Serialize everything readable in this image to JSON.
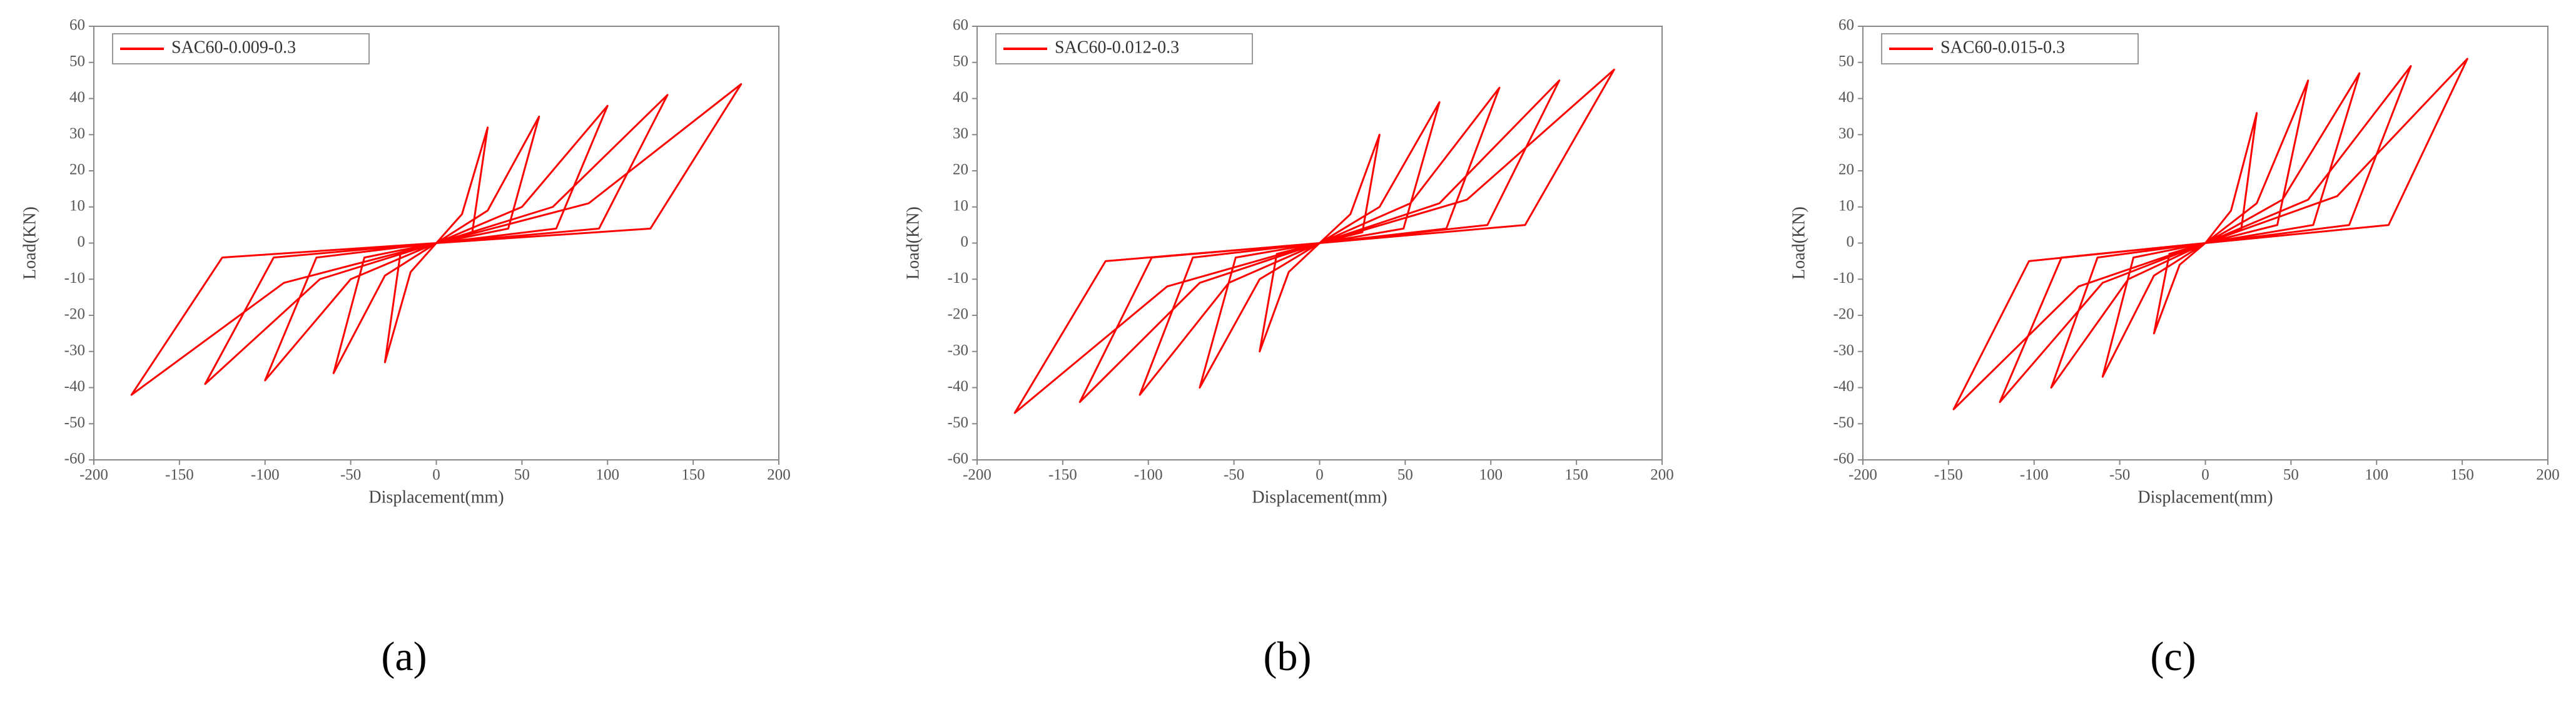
{
  "chart_data": [
    {
      "type": "line",
      "caption": "(a)",
      "xlabel": "Displacement(mm)",
      "ylabel": "Load(KN)",
      "xlim": [
        -200,
        200
      ],
      "xticks": [
        -200,
        -150,
        -100,
        -50,
        0,
        50,
        100,
        150,
        200
      ],
      "ylim": [
        -60,
        60
      ],
      "yticks": [
        -60,
        -50,
        -40,
        -30,
        -20,
        -10,
        0,
        10,
        20,
        30,
        40,
        50,
        60
      ],
      "series": [
        {
          "name": "SAC60-0.009-0.3",
          "color": "#ff0000",
          "x": [
            0,
            15,
            30,
            21,
            0,
            -15,
            -30,
            -21,
            0,
            30,
            60,
            42,
            0,
            -30,
            -60,
            -42,
            0,
            50,
            100,
            70,
            0,
            -50,
            -100,
            -70,
            0,
            68,
            135,
            95,
            0,
            -68,
            -135,
            -95,
            0,
            89,
            178,
            125,
            0,
            -89,
            -178,
            -125,
            0
          ],
          "values": [
            0,
            8,
            32,
            3,
            0,
            -8,
            -33,
            -3,
            0,
            9,
            35,
            4,
            0,
            -9,
            -36,
            -4,
            0,
            10,
            38,
            4,
            0,
            -10,
            -38,
            -4,
            0,
            10,
            41,
            4,
            0,
            -10,
            -39,
            -4,
            0,
            11,
            44,
            4,
            0,
            -11,
            -42,
            -4,
            0
          ]
        }
      ]
    },
    {
      "type": "line",
      "caption": "(b)",
      "xlabel": "Displacement(mm)",
      "ylabel": "Load(KN)",
      "xlim": [
        -200,
        200
      ],
      "xticks": [
        -200,
        -150,
        -100,
        -50,
        0,
        50,
        100,
        150,
        200
      ],
      "ylim": [
        -60,
        60
      ],
      "yticks": [
        -60,
        -50,
        -40,
        -30,
        -20,
        -10,
        0,
        10,
        20,
        30,
        40,
        50,
        60
      ],
      "series": [
        {
          "name": "SAC60-0.012-0.3",
          "color": "#ff0000",
          "x": [
            0,
            18,
            35,
            25,
            0,
            -18,
            -35,
            -25,
            0,
            35,
            70,
            49,
            0,
            -35,
            -70,
            -49,
            0,
            53,
            105,
            74,
            0,
            -53,
            -105,
            -74,
            0,
            70,
            140,
            98,
            0,
            -70,
            -140,
            -98,
            0,
            86,
            172,
            120,
            0,
            -89,
            -178,
            -125,
            0
          ],
          "values": [
            0,
            8,
            30,
            3,
            0,
            -8,
            -30,
            -3,
            0,
            10,
            39,
            4,
            0,
            -10,
            -40,
            -4,
            0,
            11,
            43,
            4,
            0,
            -11,
            -42,
            -4,
            0,
            11,
            45,
            5,
            0,
            -11,
            -44,
            -4,
            0,
            12,
            48,
            5,
            0,
            -12,
            -47,
            -5,
            0
          ]
        }
      ]
    },
    {
      "type": "line",
      "caption": "(c)",
      "xlabel": "Displacement(mm)",
      "ylabel": "Load(KN)",
      "xlim": [
        -200,
        200
      ],
      "xticks": [
        -200,
        -150,
        -100,
        -50,
        0,
        50,
        100,
        150,
        200
      ],
      "ylim": [
        -60,
        60
      ],
      "yticks": [
        -60,
        -50,
        -40,
        -30,
        -20,
        -10,
        0,
        10,
        20,
        30,
        40,
        50,
        60
      ],
      "series": [
        {
          "name": "SAC60-0.015-0.3",
          "color": "#ff0000",
          "x": [
            0,
            15,
            30,
            21,
            0,
            -15,
            -30,
            -21,
            0,
            30,
            60,
            42,
            0,
            -30,
            -60,
            -42,
            0,
            45,
            90,
            63,
            0,
            -45,
            -90,
            -63,
            0,
            60,
            120,
            84,
            0,
            -60,
            -120,
            -84,
            0,
            77,
            153,
            107,
            0,
            -74,
            -147,
            -103,
            0
          ],
          "values": [
            0,
            9,
            36,
            4,
            0,
            -6,
            -25,
            -3,
            0,
            11,
            45,
            5,
            0,
            -9,
            -37,
            -4,
            0,
            12,
            47,
            5,
            0,
            -10,
            -40,
            -4,
            0,
            12,
            49,
            5,
            0,
            -11,
            -44,
            -4,
            0,
            13,
            51,
            5,
            0,
            -12,
            -46,
            -5,
            0
          ]
        }
      ]
    }
  ]
}
